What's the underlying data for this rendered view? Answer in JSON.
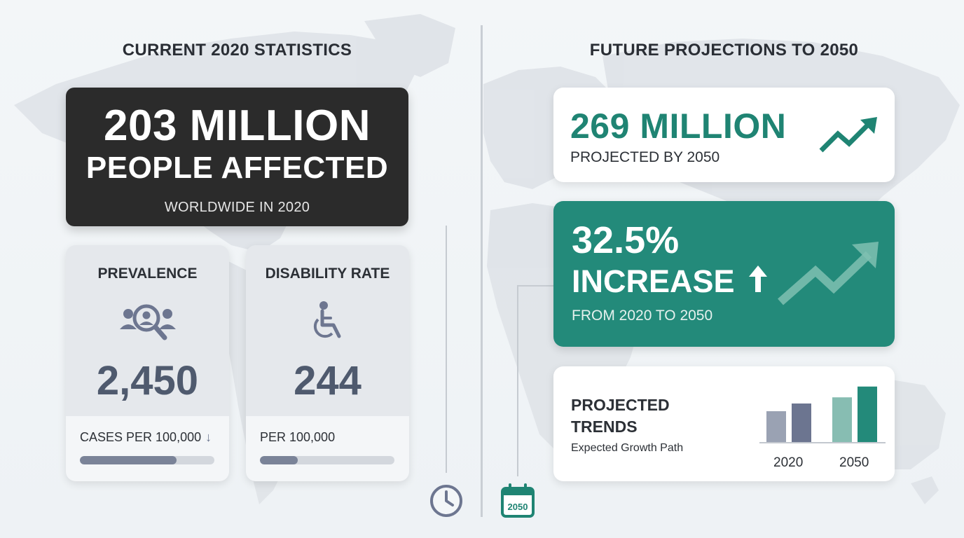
{
  "left": {
    "section_title": "CURRENT 2020 STATISTICS",
    "hero": {
      "line1": "203 MILLION",
      "line2": "PEOPLE AFFECTED",
      "line3": "WORLDWIDE IN 2020"
    },
    "prevalence": {
      "title": "PREVALENCE",
      "icon": "search-people-icon",
      "value": "2,450",
      "sub": "CASES PER 100,000",
      "sub_icon": "arrow-down-icon",
      "bar_fraction": 0.72
    },
    "disability": {
      "title": "DISABILITY RATE",
      "icon": "wheelchair-icon",
      "value": "244",
      "sub": "PER 100,000",
      "bar_fraction": 0.28
    },
    "footer_icon": "clock-icon"
  },
  "right": {
    "section_title": "FUTURE PROJECTIONS TO 2050",
    "projection": {
      "value": "269 MILLION",
      "sub": "PROJECTED BY 2050",
      "icon": "trend-up-icon"
    },
    "increase": {
      "value": "32.5%",
      "label": "INCREASE",
      "label_icon": "arrow-up-icon",
      "sub": "FROM 2020 TO 2050",
      "icon": "trend-up-icon"
    },
    "trends": {
      "title_line1": "PROJECTED",
      "title_line2": "TRENDS",
      "sub": "Expected Growth Path"
    },
    "footer_icon": "calendar-icon",
    "footer_icon_text": "2050"
  },
  "colors": {
    "teal": "#238a7a",
    "teal_text": "#1f8473",
    "dark_card": "#2b2b2b",
    "slate": "#4f5a6e"
  },
  "chart_data": {
    "type": "bar",
    "categories": [
      "2020",
      "2050"
    ],
    "series": [
      {
        "values": [
          1.0,
          1.25
        ]
      },
      {
        "values": [
          1.45,
          1.8
        ]
      }
    ],
    "colors": [
      [
        "#9aa2b3",
        "#6c7590"
      ],
      [
        "#87bdb2",
        "#238a7a"
      ]
    ],
    "ylim": [
      0,
      2
    ],
    "grid": false,
    "legend": "none"
  }
}
